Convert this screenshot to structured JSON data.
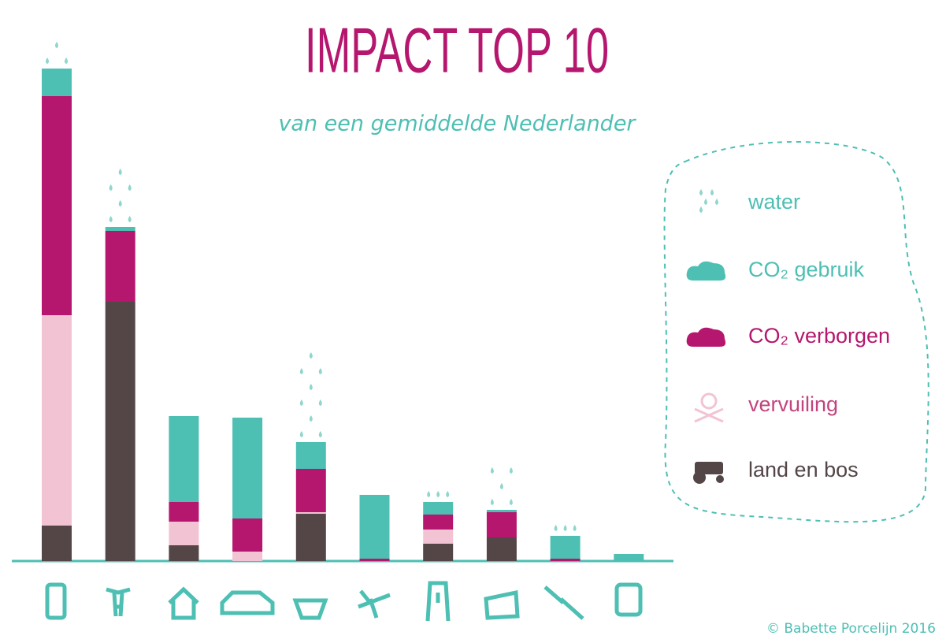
{
  "chart_data": {
    "type": "stacked_bar",
    "title": "IMPACT TOP 10",
    "subtitle": "van een gemiddelde Nederlander",
    "credit": "© Babette Porcelijn 2016",
    "categories": [
      null,
      null,
      null,
      null,
      null,
      null,
      null,
      null,
      null,
      null
    ],
    "ylim": [
      0,
      712
    ],
    "series": [
      {
        "name": "land en bos",
        "color": "#544547",
        "values": [
          45,
          329,
          20,
          0,
          60,
          0,
          22,
          30,
          0,
          0
        ]
      },
      {
        "name": "vervuiling",
        "color": "#f2c4d3",
        "values": [
          267,
          0,
          30,
          12,
          2,
          0,
          18,
          0,
          0,
          0
        ]
      },
      {
        "name": "CO₂ verborgen",
        "color": "#b5176e",
        "values": [
          278,
          90,
          25,
          42,
          55,
          3,
          19,
          32,
          3,
          0
        ]
      },
      {
        "name": "CO₂ gebruik",
        "color": "#4dbfb3",
        "values": [
          35,
          5,
          109,
          128,
          34,
          81,
          16,
          3,
          29,
          9
        ]
      },
      {
        "name": "water",
        "color": "#8fd6cc",
        "values": [
          50,
          80,
          0,
          0,
          120,
          0,
          20,
          65,
          18,
          0
        ]
      }
    ]
  }
}
